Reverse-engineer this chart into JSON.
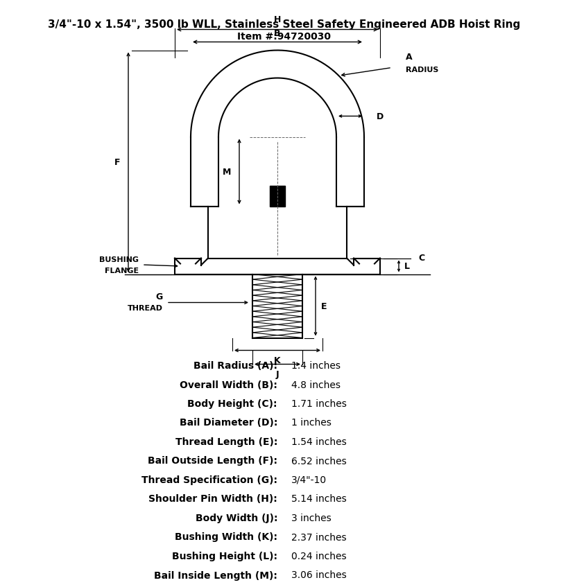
{
  "title": "3/4\"-10 x 1.54\", 3500 lb WLL, Stainless Steel Safety Engineered ADB Hoist Ring",
  "subtitle": "Item #:94720030",
  "specs": [
    {
      "label": "Bail Radius (A):",
      "value": "1.4 inches"
    },
    {
      "label": "Overall Width (B):",
      "value": "4.8 inches"
    },
    {
      "label": "Body Height (C):",
      "value": "1.71 inches"
    },
    {
      "label": "Bail Diameter (D):",
      "value": "1 inches"
    },
    {
      "label": "Thread Length (E):",
      "value": "1.54 inches"
    },
    {
      "label": "Bail Outside Length (F):",
      "value": "6.52 inches"
    },
    {
      "label": "Thread Specification (G):",
      "value": "3/4\"-10"
    },
    {
      "label": "Shoulder Pin Width (H):",
      "value": "5.14 inches"
    },
    {
      "label": "Body Width (J):",
      "value": "3 inches"
    },
    {
      "label": "Bushing Width (K):",
      "value": "2.37 inches"
    },
    {
      "label": "Bushing Height (L):",
      "value": "0.24 inches"
    },
    {
      "label": "Bail Inside Length (M):",
      "value": "3.06 inches"
    }
  ],
  "bg_color": "#ffffff",
  "line_color": "#000000",
  "text_color": "#000000"
}
